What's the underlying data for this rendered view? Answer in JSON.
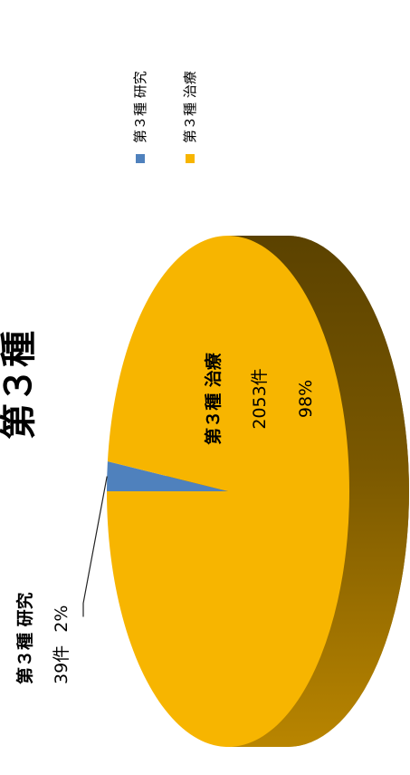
{
  "chart_data": {
    "type": "pie",
    "title": "第３種",
    "categories": [
      "第３種 研究",
      "第３種 治療"
    ],
    "values": [
      39,
      2053
    ],
    "percentages": [
      "2%",
      "98%"
    ],
    "colors": [
      "#4f81bd",
      "#f7b500"
    ],
    "unit": "件",
    "legend_position": "right",
    "labels": [
      {
        "name": "第３種 研究",
        "value": "39件",
        "percent": "2%"
      },
      {
        "name": "第３種 治療",
        "value": "2053件",
        "percent": "98%"
      }
    ]
  },
  "legend": {
    "items": [
      {
        "label": "第３種 研究",
        "color": "#4f81bd"
      },
      {
        "label": "第３種 治療",
        "color": "#f7b500"
      }
    ]
  }
}
